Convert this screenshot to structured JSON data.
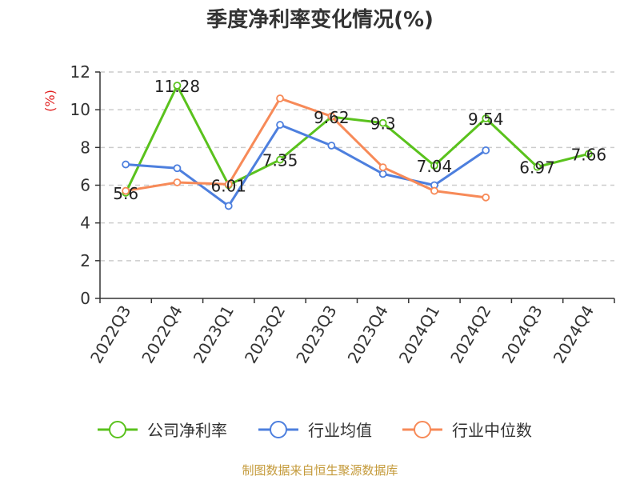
{
  "chart_data": {
    "type": "line",
    "title": "季度净利率变化情况(%)",
    "ylabel": "(%)",
    "ylim": [
      0,
      12
    ],
    "yticks": [
      0,
      2,
      4,
      6,
      8,
      10,
      12
    ],
    "grid": "horizontal-dashed",
    "legend_position": "bottom",
    "categories": [
      "2022Q3",
      "2022Q4",
      "2023Q1",
      "2023Q2",
      "2023Q3",
      "2023Q4",
      "2024Q1",
      "2024Q2",
      "2024Q3",
      "2024Q4"
    ],
    "series": [
      {
        "name": "公司净利率",
        "color": "#5ac21d",
        "values": [
          5.6,
          11.28,
          6.01,
          7.35,
          9.62,
          9.3,
          7.04,
          9.54,
          6.97,
          7.66
        ],
        "labels": [
          "5.6",
          "11.28",
          "6.01",
          "7.35",
          "9.62",
          "9.3",
          "7.04",
          "9.54",
          "6.97",
          "7.66"
        ]
      },
      {
        "name": "行业均值",
        "color": "#4d7fde",
        "values": [
          7.1,
          6.9,
          4.9,
          9.2,
          8.1,
          6.6,
          6.0,
          7.85,
          null,
          null
        ]
      },
      {
        "name": "行业中位数",
        "color": "#f78a58",
        "values": [
          5.7,
          6.15,
          6.05,
          10.6,
          9.65,
          6.95,
          5.7,
          5.35,
          null,
          null
        ]
      }
    ]
  },
  "source": "制图数据来自恒生聚源数据库"
}
